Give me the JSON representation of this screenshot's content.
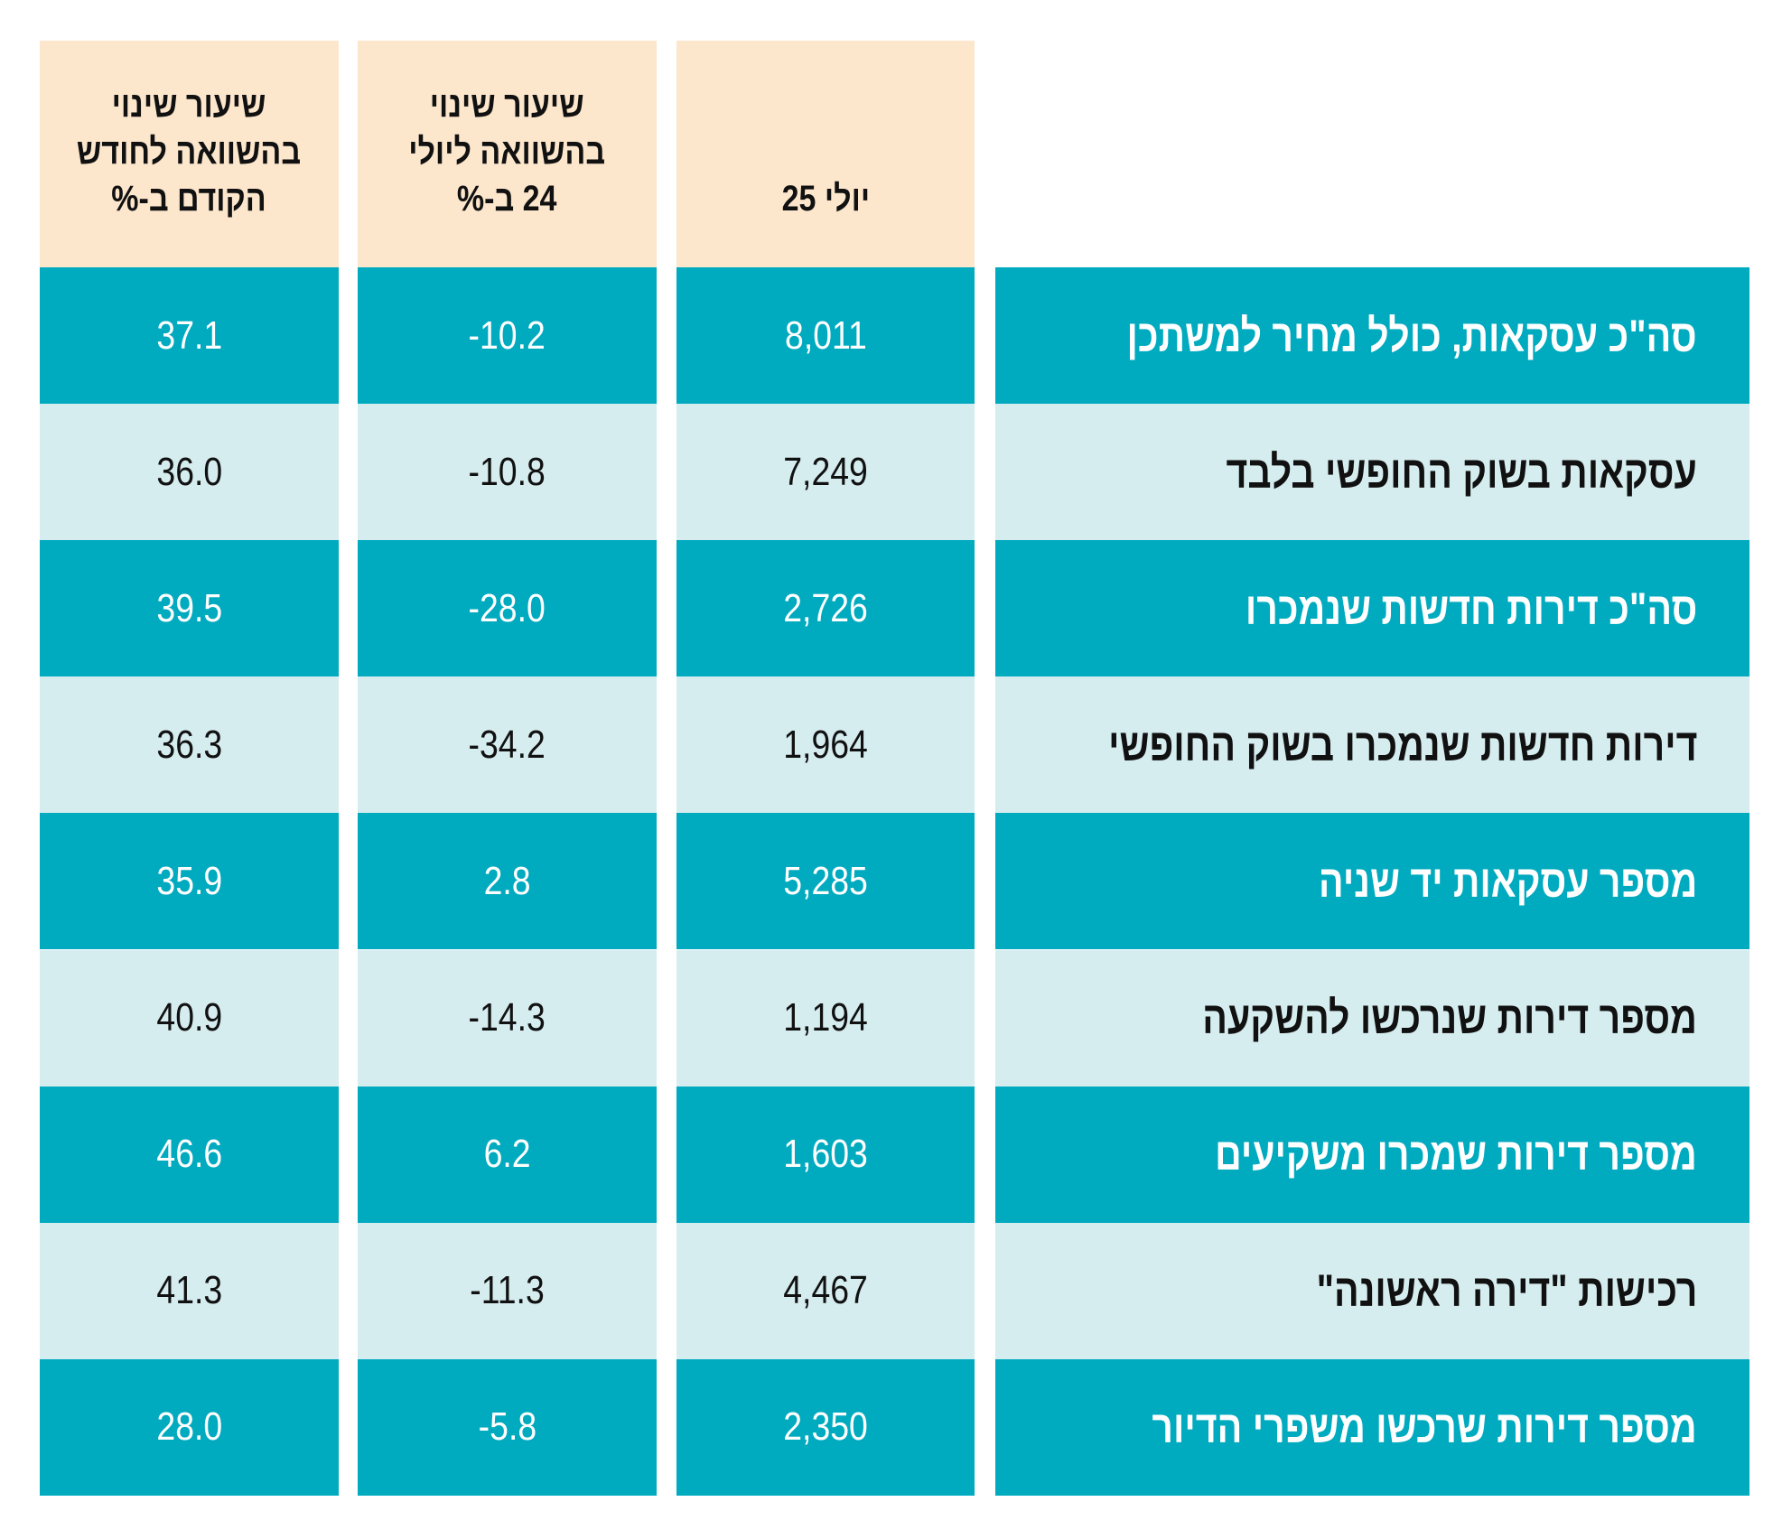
{
  "colors": {
    "header_bg": "#FCE6CC",
    "row_dark": "#00AABF",
    "row_light": "#D6EDF0"
  },
  "table": {
    "headers": {
      "change_prev_month": "שיעור שינוי\nבהשוואה לחודש\nהקודם ב-%",
      "change_july24": "שיעור שינוי\nבהשוואה ליולי\n24 ב-%",
      "july25": "יולי 25"
    },
    "rows": [
      {
        "label": "סה\"כ עסקאות, כולל מחיר למשתכן",
        "july25": "8,011",
        "change_july24": "-10.2",
        "change_prev_month": "37.1"
      },
      {
        "label": "עסקאות בשוק החופשי בלבד",
        "july25": "7,249",
        "change_july24": "-10.8",
        "change_prev_month": "36.0"
      },
      {
        "label": "סה\"כ דירות חדשות שנמכרו",
        "july25": "2,726",
        "change_july24": "-28.0",
        "change_prev_month": "39.5"
      },
      {
        "label": "דירות חדשות שנמכרו בשוק החופשי",
        "july25": "1,964",
        "change_july24": "-34.2",
        "change_prev_month": "36.3"
      },
      {
        "label": "מספר עסקאות יד שניה",
        "july25": "5,285",
        "change_july24": "2.8",
        "change_prev_month": "35.9"
      },
      {
        "label": "מספר דירות שנרכשו להשקעה",
        "july25": "1,194",
        "change_july24": "-14.3",
        "change_prev_month": "40.9"
      },
      {
        "label": "מספר דירות שמכרו משקיעים",
        "july25": "1,603",
        "change_july24": "6.2",
        "change_prev_month": "46.6"
      },
      {
        "label": "רכישות \"דירה ראשונה\"",
        "july25": "4,467",
        "change_july24": "-11.3",
        "change_prev_month": "41.3"
      },
      {
        "label": "מספר דירות שרכשו משפרי הדיור",
        "july25": "2,350",
        "change_july24": "-5.8",
        "change_prev_month": "28.0"
      }
    ]
  }
}
